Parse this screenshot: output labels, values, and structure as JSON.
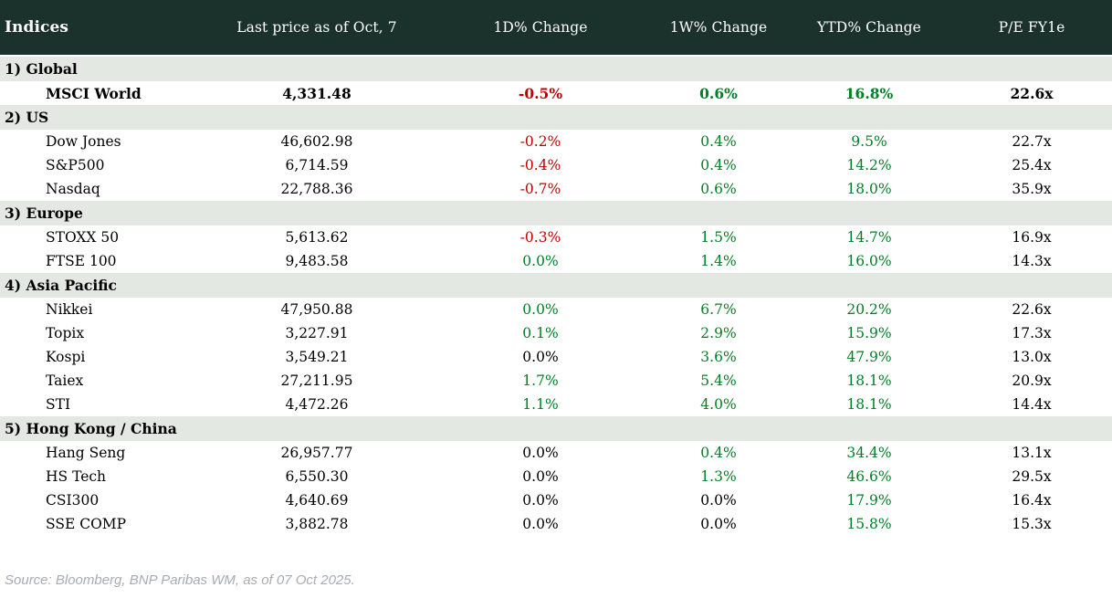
{
  "table": {
    "title": "Indices",
    "columns": [
      "Last price as of Oct, 7",
      "1D% Change",
      "1W% Change",
      "YTD% Change",
      "P/E FY1e"
    ],
    "groups": [
      {
        "label": "1) Global",
        "rows": [
          {
            "name": "MSCI World",
            "bold": true,
            "price": "4,331.48",
            "changes": [
              {
                "v": "-0.5%",
                "c": "neg"
              },
              {
                "v": "0.6%",
                "c": "pos"
              },
              {
                "v": "16.8%",
                "c": "pos"
              }
            ],
            "pe": "22.6x"
          }
        ]
      },
      {
        "label": "2) US",
        "rows": [
          {
            "name": "Dow Jones",
            "bold": false,
            "price": "46,602.98",
            "changes": [
              {
                "v": "-0.2%",
                "c": "neg"
              },
              {
                "v": "0.4%",
                "c": "pos"
              },
              {
                "v": "9.5%",
                "c": "pos"
              }
            ],
            "pe": "22.7x"
          },
          {
            "name": "S&P500",
            "bold": false,
            "price": "6,714.59",
            "changes": [
              {
                "v": "-0.4%",
                "c": "neg"
              },
              {
                "v": "0.4%",
                "c": "pos"
              },
              {
                "v": "14.2%",
                "c": "pos"
              }
            ],
            "pe": "25.4x"
          },
          {
            "name": "Nasdaq",
            "bold": false,
            "price": "22,788.36",
            "changes": [
              {
                "v": "-0.7%",
                "c": "neg"
              },
              {
                "v": "0.6%",
                "c": "pos"
              },
              {
                "v": "18.0%",
                "c": "pos"
              }
            ],
            "pe": "35.9x"
          }
        ]
      },
      {
        "label": "3) Europe",
        "rows": [
          {
            "name": "STOXX 50",
            "bold": false,
            "price": "5,613.62",
            "changes": [
              {
                "v": "-0.3%",
                "c": "neg"
              },
              {
                "v": "1.5%",
                "c": "pos"
              },
              {
                "v": "14.7%",
                "c": "pos"
              }
            ],
            "pe": "16.9x"
          },
          {
            "name": "FTSE 100",
            "bold": false,
            "price": "9,483.58",
            "changes": [
              {
                "v": "0.0%",
                "c": "pos"
              },
              {
                "v": "1.4%",
                "c": "pos"
              },
              {
                "v": "16.0%",
                "c": "pos"
              }
            ],
            "pe": "14.3x"
          }
        ]
      },
      {
        "label": "4) Asia Pacific",
        "rows": [
          {
            "name": "Nikkei",
            "bold": false,
            "price": "47,950.88",
            "changes": [
              {
                "v": "0.0%",
                "c": "pos"
              },
              {
                "v": "6.7%",
                "c": "pos"
              },
              {
                "v": "20.2%",
                "c": "pos"
              }
            ],
            "pe": "22.6x"
          },
          {
            "name": "Topix",
            "bold": false,
            "price": "3,227.91",
            "changes": [
              {
                "v": "0.1%",
                "c": "pos"
              },
              {
                "v": "2.9%",
                "c": "pos"
              },
              {
                "v": "15.9%",
                "c": "pos"
              }
            ],
            "pe": "17.3x"
          },
          {
            "name": "Kospi",
            "bold": false,
            "price": "3,549.21",
            "changes": [
              {
                "v": "0.0%",
                "c": "flat"
              },
              {
                "v": "3.6%",
                "c": "pos"
              },
              {
                "v": "47.9%",
                "c": "pos"
              }
            ],
            "pe": "13.0x"
          },
          {
            "name": "Taiex",
            "bold": false,
            "price": "27,211.95",
            "changes": [
              {
                "v": "1.7%",
                "c": "pos"
              },
              {
                "v": "5.4%",
                "c": "pos"
              },
              {
                "v": "18.1%",
                "c": "pos"
              }
            ],
            "pe": "20.9x"
          },
          {
            "name": "STI",
            "bold": false,
            "price": "4,472.26",
            "changes": [
              {
                "v": "1.1%",
                "c": "pos"
              },
              {
                "v": "4.0%",
                "c": "pos"
              },
              {
                "v": "18.1%",
                "c": "pos"
              }
            ],
            "pe": "14.4x"
          }
        ]
      },
      {
        "label": "5) Hong Kong / China",
        "rows": [
          {
            "name": "Hang Seng",
            "bold": false,
            "price": "26,957.77",
            "changes": [
              {
                "v": "0.0%",
                "c": "flat"
              },
              {
                "v": "0.4%",
                "c": "pos"
              },
              {
                "v": "34.4%",
                "c": "pos"
              }
            ],
            "pe": "13.1x"
          },
          {
            "name": "HS Tech",
            "bold": false,
            "price": "6,550.30",
            "changes": [
              {
                "v": "0.0%",
                "c": "flat"
              },
              {
                "v": "1.3%",
                "c": "pos"
              },
              {
                "v": "46.6%",
                "c": "pos"
              }
            ],
            "pe": "29.5x"
          },
          {
            "name": "CSI300",
            "bold": false,
            "price": "4,640.69",
            "changes": [
              {
                "v": "0.0%",
                "c": "flat"
              },
              {
                "v": "0.0%",
                "c": "flat"
              },
              {
                "v": "17.9%",
                "c": "pos"
              }
            ],
            "pe": "16.4x"
          },
          {
            "name": "SSE COMP",
            "bold": false,
            "price": "3,882.78",
            "changes": [
              {
                "v": "0.0%",
                "c": "flat"
              },
              {
                "v": "0.0%",
                "c": "flat"
              },
              {
                "v": "15.8%",
                "c": "pos"
              }
            ],
            "pe": "15.3x"
          }
        ]
      }
    ]
  },
  "footer": {
    "source": "Source: Bloomberg, BNP Paribas WM, as of 07 Oct 2025."
  },
  "colors": {
    "header_bg": "#1B322C",
    "header_text": "#FFFFFF",
    "section_bg": "#E4E8E3",
    "negative": "#C00000",
    "positive": "#008026",
    "neutral": "#000000",
    "source_text": "#A6ACB2"
  }
}
